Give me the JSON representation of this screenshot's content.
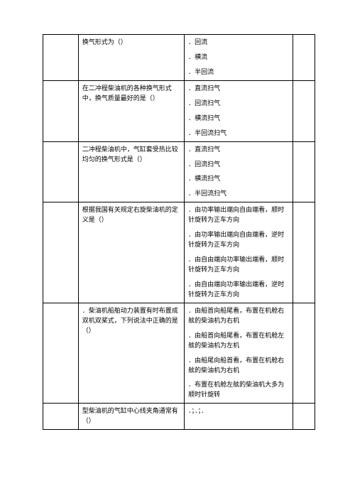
{
  "rows": [
    {
      "col1": "",
      "question": "换气形式为（）",
      "opts": [
        "．回流",
        "．横流",
        "．半回流"
      ],
      "col4": ""
    },
    {
      "col1": "",
      "question": "在二冲程柴油机的各种换气形式中，换气质量最好的是（）",
      "opts": [
        "．直流扫气",
        "．回流扫气",
        "．横流扫气",
        "．半回流扫气"
      ],
      "col4": ""
    },
    {
      "col1": "",
      "question": "二冲程柴油机中，气缸套受热比较均匀的换气形式是（）",
      "opts": [
        "．直流扫气",
        "．回流扫气",
        "．横流扫气",
        "．半回流扫气"
      ],
      "col4": ""
    },
    {
      "col1": "",
      "question": "根据我国有关规定右旋柴油机的定义是（）",
      "opts": [
        "．由功率输出端向自由端看，顺时针旋转为正车方向",
        "．由功率输出端向自由端看，逆时针旋转为正车方向",
        "．由自由端向功率输出端看，顺时针旋转为正车方向",
        "．由自由端向功率输出端看，逆时针旋转为正车方向"
      ],
      "col4": ""
    },
    {
      "col1": "",
      "question": "．柴油机船舶动力装置有时布置成双机双桨式，下列说法中正确的是（）",
      "opts": [
        "．由船首向船尾看，布置在机舱右舷的柴油机为右机",
        "．由船首向船尾看，布置在机舱左舷的柴油机为左机",
        "．由船尾向船首看，布置在机舱右舷的柴油机为右机",
        "．布置在机舱左舷的柴油机大多为顺时针旋转"
      ],
      "col4": ""
    },
    {
      "col1": "",
      "question": "型柴油机的气缸中心线夹角通常有（）",
      "opts": [
        "．；．；．"
      ],
      "col4": ""
    }
  ]
}
